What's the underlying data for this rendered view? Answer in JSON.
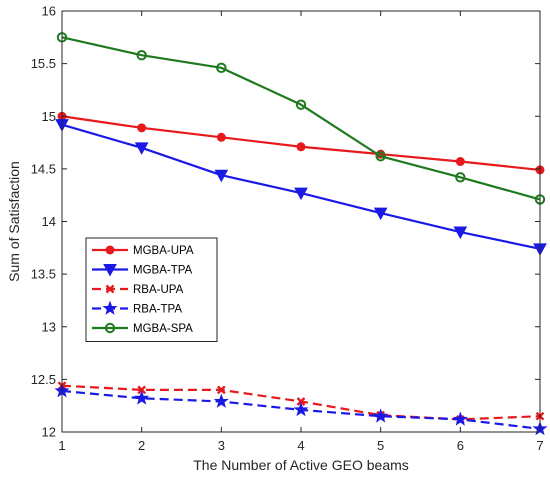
{
  "chart_data": {
    "type": "line",
    "title": "",
    "xlabel": "The Number of Active GEO beams",
    "ylabel": "Sum of Satisfaction",
    "xlim": [
      1,
      7
    ],
    "ylim": [
      12,
      16
    ],
    "xticks": [
      1,
      2,
      3,
      4,
      5,
      6,
      7
    ],
    "yticks": [
      12,
      12.5,
      13,
      13.5,
      14,
      14.5,
      15,
      15.5,
      16
    ],
    "ytick_labels": [
      "12",
      "12.5",
      "13",
      "13.5",
      "14",
      "14.5",
      "15",
      "15.5",
      "16"
    ],
    "grid": false,
    "legend_position": "middle-left",
    "x": [
      1,
      2,
      3,
      4,
      5,
      6,
      7
    ],
    "series": [
      {
        "name": "MGBA-UPA",
        "values": [
          15.0,
          14.89,
          14.8,
          14.71,
          14.64,
          14.57,
          14.49
        ],
        "color": "#e8191c",
        "dash": "solid",
        "marker": "circle-filled"
      },
      {
        "name": "MGBA-TPA",
        "values": [
          14.92,
          14.7,
          14.44,
          14.27,
          14.08,
          13.9,
          13.74
        ],
        "color": "#1a1ae6",
        "dash": "solid",
        "marker": "triangle-down"
      },
      {
        "name": "RBA-UPA",
        "values": [
          12.44,
          12.4,
          12.4,
          12.29,
          12.16,
          12.12,
          12.15
        ],
        "color": "#e8191c",
        "dash": "dashed",
        "marker": "x"
      },
      {
        "name": "RBA-TPA",
        "values": [
          12.39,
          12.32,
          12.29,
          12.21,
          12.15,
          12.12,
          12.03
        ],
        "color": "#1a1ae6",
        "dash": "dashed",
        "marker": "star"
      },
      {
        "name": "MGBA-SPA",
        "values": [
          15.75,
          15.58,
          15.46,
          15.11,
          14.62,
          14.42,
          14.21
        ],
        "color": "#1f7a1f",
        "dash": "solid",
        "marker": "circle-open"
      }
    ]
  }
}
